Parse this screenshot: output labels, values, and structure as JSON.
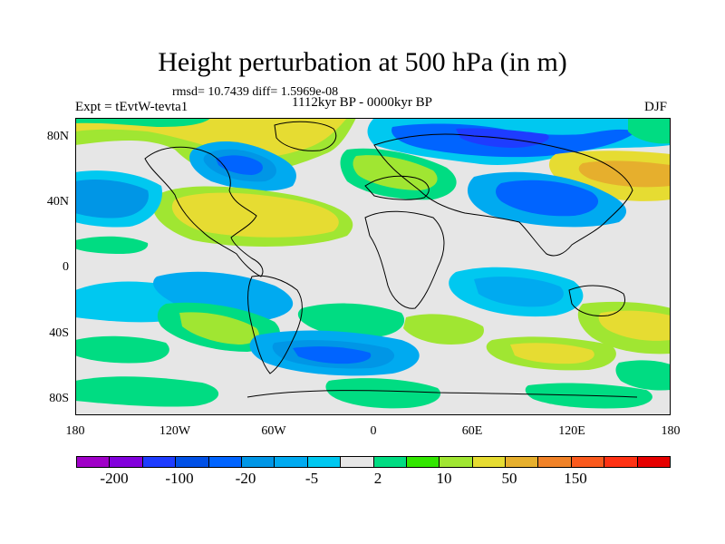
{
  "title": "Height perturbation at 500 hPa (in m)",
  "stats": "rmsd= 10.7439 diff= 1.5969e-08",
  "experiment": "Expt = tEvtW-tevta1",
  "period": "1112kyr BP - 0000kyr BP",
  "season": "DJF",
  "lat_labels": [
    "80N",
    "40N",
    "0",
    "40S",
    "80S"
  ],
  "lon_labels": [
    "180",
    "120W",
    "60W",
    "0",
    "60E",
    "120E",
    "180"
  ],
  "colorbar": {
    "colors": [
      "#a000c8",
      "#8200dc",
      "#1e3cff",
      "#0050e6",
      "#0064ff",
      "#0096e6",
      "#00aaf0",
      "#00c8f0",
      "#e6e6e6",
      "#00dc82",
      "#32e600",
      "#a0e632",
      "#e6dc32",
      "#e6af2d",
      "#f08228",
      "#fa5a1e",
      "#ff3214",
      "#e60000"
    ],
    "labels": [
      "-200",
      "-100",
      "-20",
      "-5",
      "2",
      "10",
      "50",
      "150"
    ]
  },
  "legend_icon": "map-contour-field"
}
